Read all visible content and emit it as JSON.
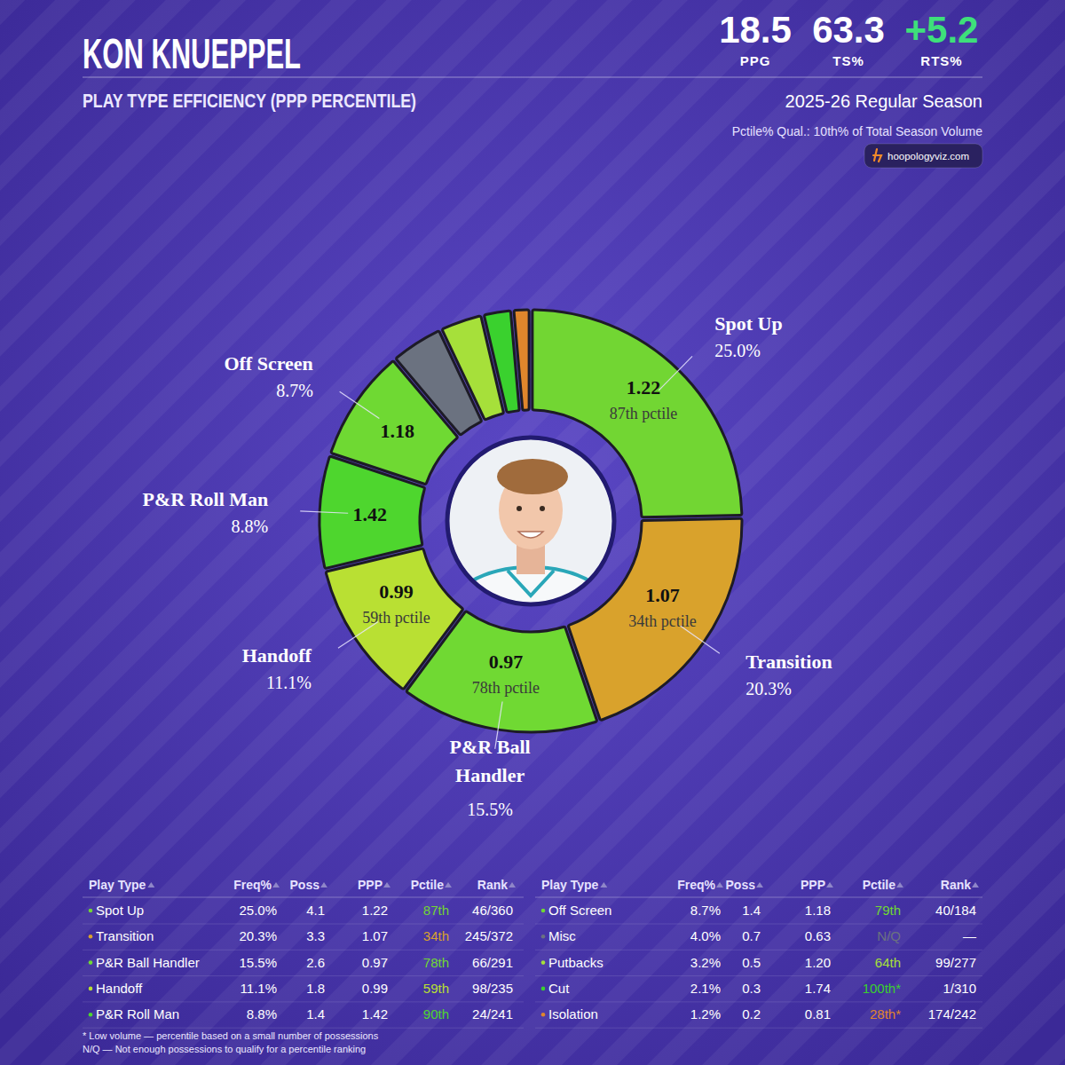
{
  "header": {
    "title": "KON KNUEPPEL",
    "subtitle": "PLAY TYPE EFFICIENCY (PPP PERCENTILE)",
    "stats": [
      {
        "value": "18.5",
        "label": "PPG"
      },
      {
        "value": "63.3",
        "label": "TS%"
      },
      {
        "value": "+5.2",
        "label": "RTS%"
      }
    ],
    "season": "2025-26 Regular Season",
    "qualifier": "Pctile% Qual.: 10th% of Total Season Volume",
    "source": "hoopologyviz.com"
  },
  "chart_data": {
    "type": "donut",
    "categories": [
      "Spot Up",
      "Transition",
      "P&R Ball Handler",
      "Handoff",
      "P&R Roll Man",
      "Off Screen",
      null,
      null,
      null,
      null
    ],
    "values": [
      25.0,
      20.3,
      15.5,
      11.1,
      8.8,
      8.7,
      4.0,
      3.2,
      2.1,
      1.2
    ],
    "value_labels": [
      "25.0%",
      "20.3%",
      "15.5%",
      "11.1%",
      "8.8%",
      "8.7%",
      null,
      null,
      null,
      null
    ],
    "ppp": [
      1.22,
      1.07,
      0.97,
      0.99,
      1.42,
      1.18,
      null,
      null,
      null,
      null
    ],
    "percentile_labels": [
      "87th pctile",
      "34th pctile",
      "78th pctile",
      "59th pctile",
      null,
      null,
      null,
      null,
      null,
      null
    ],
    "colors": [
      "#72d633",
      "#d9a22c",
      "#70d933",
      "#b9e033",
      "#4ed62e",
      "#6fd933",
      "#6b7280",
      "#a6e03a",
      "#3ad12e",
      "#e0862c"
    ],
    "data_labels": true
  },
  "table": {
    "columns": [
      "Play Type",
      "Freq%",
      "Poss",
      "PPP",
      "Pctile",
      "Rank"
    ],
    "rows": [
      [
        "Spot Up",
        "25.0%",
        "4.1",
        "1.22",
        "87th",
        "46/360"
      ],
      [
        "Transition",
        "20.3%",
        "3.3",
        "1.07",
        "34th",
        "245/372"
      ],
      [
        "P&R Ball Handler",
        "15.5%",
        "2.6",
        "0.97",
        "78th",
        "66/291"
      ],
      [
        "Handoff",
        "11.1%",
        "1.8",
        "0.99",
        "59th",
        "98/235"
      ],
      [
        "P&R Roll Man",
        "8.8%",
        "1.4",
        "1.42",
        "90th",
        "24/241"
      ],
      [
        "Off Screen",
        "8.7%",
        "1.4",
        "1.18",
        "79th",
        "40/184"
      ],
      [
        "Misc",
        "4.0%",
        "0.7",
        "0.63",
        "N/Q",
        "—"
      ],
      [
        "Putbacks",
        "3.2%",
        "0.5",
        "1.20",
        "64th",
        "99/277"
      ],
      [
        "Cut",
        "2.1%",
        "0.3",
        "1.74",
        "100th*",
        "1/310"
      ],
      [
        "Isolation",
        "1.2%",
        "0.2",
        "0.81",
        "28th*",
        "174/242"
      ]
    ]
  },
  "footnotes": [
    "* Low volume — percentile based on a small number of possessions",
    "N/Q — Not enough possessions to qualify for a percentile ranking"
  ]
}
